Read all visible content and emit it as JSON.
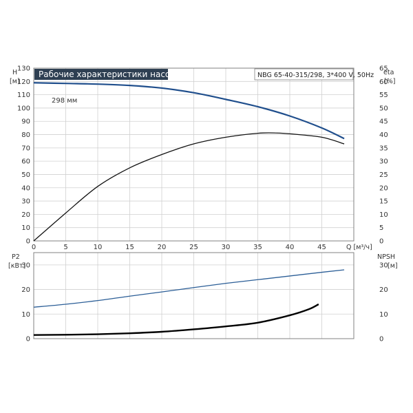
{
  "header": {
    "title": "Рабочие характеристики насоса",
    "model": "NBG 65-40-315/298, 3*400 V, 50Hz"
  },
  "colors": {
    "head_curve": "#1f4e8c",
    "eta_curve": "#111111",
    "p2_curve": "#2a5d96",
    "npsh_curve": "#000000",
    "title_bg": "#2e3f52"
  },
  "chart_data": [
    {
      "type": "line",
      "xlabel": "Q [м³/ч]",
      "ylabel_left": [
        "H",
        "[м]"
      ],
      "ylabel_right": [
        "eta",
        "[%]"
      ],
      "xlim": [
        0,
        50
      ],
      "ylim_left": [
        0,
        130
      ],
      "ylim_right": [
        0,
        65
      ],
      "x_ticks": [
        0,
        5,
        10,
        15,
        20,
        25,
        30,
        35,
        40,
        45
      ],
      "y_ticks_left": [
        0,
        10,
        20,
        30,
        40,
        50,
        60,
        70,
        80,
        90,
        100,
        110,
        120,
        130
      ],
      "y_ticks_right": [
        0,
        5,
        10,
        15,
        20,
        25,
        30,
        35,
        40,
        45,
        50,
        55,
        60,
        65
      ],
      "grid": true,
      "annotation": "298 мм",
      "series": [
        {
          "key": "head",
          "axis": "left",
          "x": [
            0,
            5,
            10,
            15,
            20,
            25,
            30,
            35,
            40,
            45,
            48.5
          ],
          "y": [
            119,
            118.5,
            118,
            117,
            115,
            111.5,
            106.5,
            101,
            94,
            85,
            77
          ]
        },
        {
          "key": "eta",
          "axis": "right",
          "x": [
            0,
            5,
            10,
            15,
            20,
            25,
            30,
            35,
            38,
            40,
            45,
            48.5
          ],
          "y": [
            0,
            10.5,
            20.5,
            27.5,
            32.5,
            36.5,
            39,
            40.5,
            40.6,
            40.3,
            39,
            36.5
          ]
        }
      ]
    },
    {
      "type": "line",
      "ylabel_left": [
        "P2",
        "[кВт]"
      ],
      "ylabel_right": [
        "NPSH",
        "[м]"
      ],
      "xlim": [
        0,
        50
      ],
      "ylim_left": [
        0,
        35
      ],
      "ylim_right": [
        0,
        35
      ],
      "y_ticks_left": [
        0,
        10,
        20,
        30
      ],
      "y_ticks_right": [
        0,
        10,
        20,
        30
      ],
      "grid": true,
      "series": [
        {
          "key": "p2",
          "axis": "left",
          "x": [
            0,
            5,
            10,
            15,
            20,
            25,
            30,
            35,
            40,
            45,
            48.5
          ],
          "y": [
            12.8,
            14,
            15.5,
            17.3,
            19,
            20.8,
            22.5,
            24,
            25.5,
            27,
            28
          ]
        },
        {
          "key": "npsh",
          "axis": "right",
          "x": [
            0,
            5,
            10,
            15,
            20,
            25,
            30,
            35,
            40,
            43,
            44.5
          ],
          "y": [
            1.5,
            1.6,
            1.8,
            2.2,
            2.8,
            3.8,
            5,
            6.5,
            9.5,
            12,
            14
          ]
        }
      ]
    }
  ]
}
